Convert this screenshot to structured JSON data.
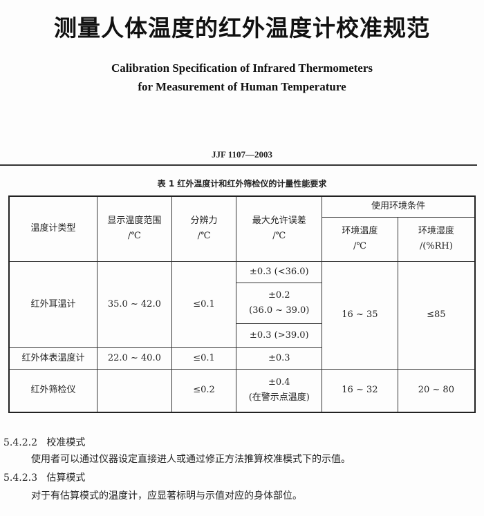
{
  "title": "测量人体温度的红外温度计校准规范",
  "subtitle_en": [
    "Calibration Specification of Infrared Thermometers",
    "for Measurement of Human Temperature"
  ],
  "standard_number": "JJF 1107—2003",
  "table": {
    "caption": "表 1   红外温度计和红外筛检仪的计量性能要求",
    "headers": {
      "type": "温度计类型",
      "range": [
        "显示温度范围",
        "/℃"
      ],
      "resolution": [
        "分辨力",
        "/℃"
      ],
      "max_error": [
        "最大允许误差",
        "/℃"
      ],
      "env": "使用环境条件",
      "env_temp": [
        "环境温度",
        "/℃"
      ],
      "env_humidity": [
        "环境湿度",
        "/(%RH)"
      ]
    },
    "rows": {
      "ear": {
        "type": "红外耳温计",
        "range": "35.0 ~ 42.0",
        "resolution": "≤0.1",
        "errors": [
          "±0.3 (<36.0)",
          "±0.2",
          "(36.0 ~ 39.0)",
          "±0.3 (>39.0)"
        ]
      },
      "surface": {
        "type": "红外体表温度计",
        "range": "22.0 ~ 40.0",
        "resolution": "≤0.1",
        "error": "±0.3"
      },
      "ear_surface_env": {
        "temp": "16 ~ 35",
        "humidity": "≤85"
      },
      "screener": {
        "type": "红外筛检仪",
        "range": "",
        "resolution": "≤0.2",
        "error": [
          "±0.4",
          "(在警示点温度)"
        ],
        "temp": "16 ~ 32",
        "humidity": "20 ~ 80"
      }
    }
  },
  "sections": [
    {
      "number": "5.4.2.2",
      "heading": "校准模式",
      "text": "使用者可以通过仪器设定直接进人或通过修正方法推算校准模式下的示值。"
    },
    {
      "number": "5.4.2.3",
      "heading": "估算模式",
      "text": "对于有估算模式的温度计，应显著标明与示值对应的身体部位。"
    }
  ]
}
